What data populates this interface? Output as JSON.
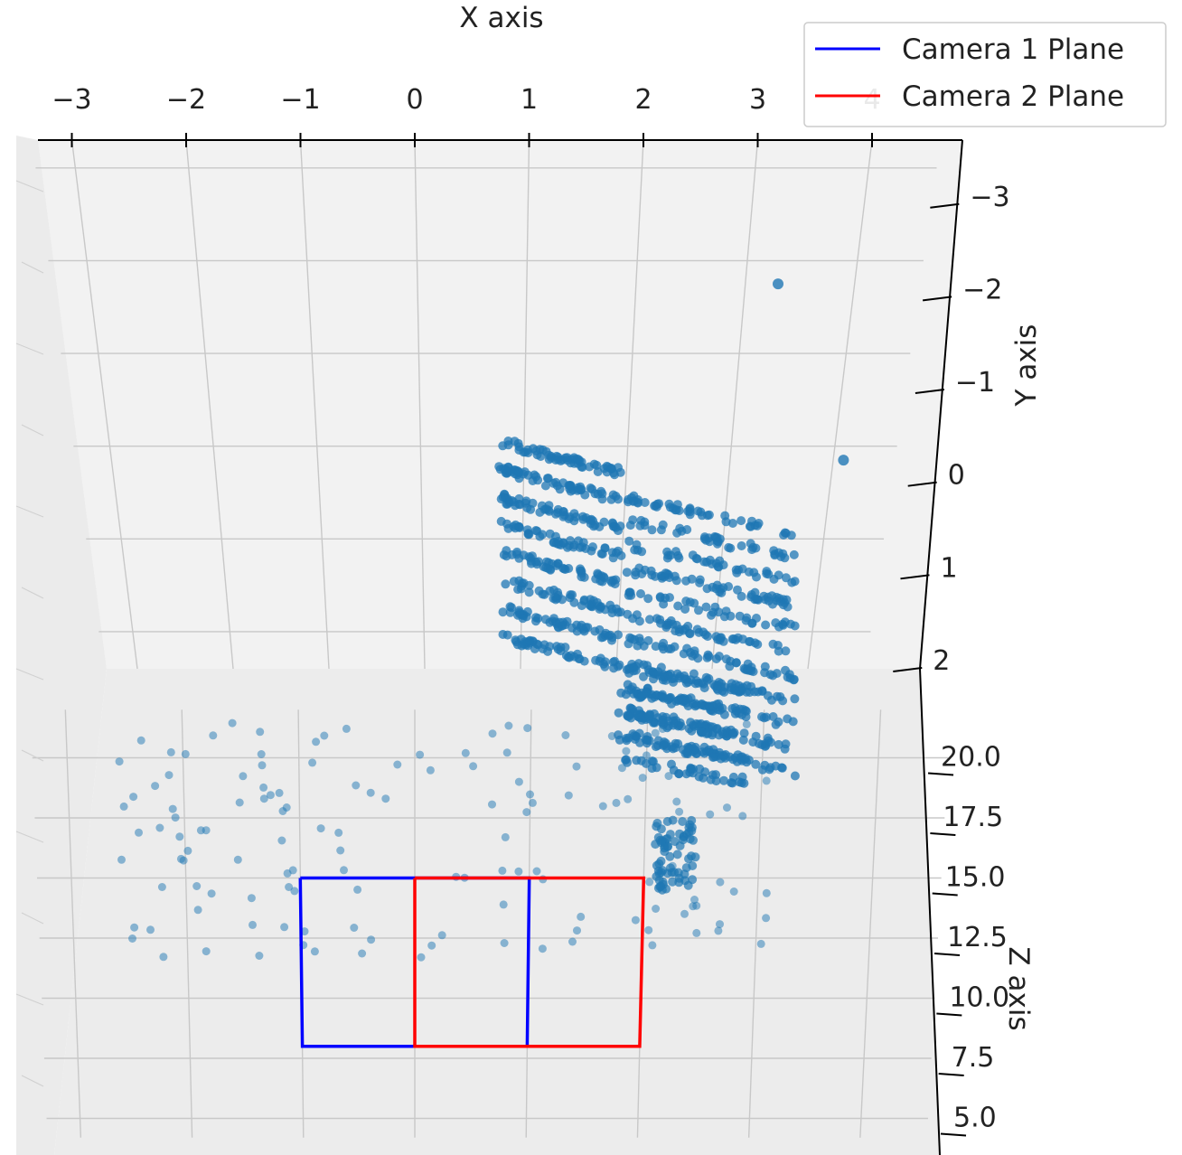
{
  "chart_data": {
    "type": "scatter",
    "projection": "3d",
    "title": "",
    "xlabel": "X axis",
    "ylabel": "Y axis",
    "zlabel": "Z axis",
    "x_ticks": [
      "−3",
      "−2",
      "−1",
      "0",
      "1",
      "2",
      "3",
      "4"
    ],
    "y_ticks": [
      "−3",
      "−2",
      "−1",
      "0",
      "1",
      "2"
    ],
    "z_ticks": [
      "20.0",
      "17.5",
      "15.0",
      "12.5",
      "10.0",
      "7.5",
      "5.0"
    ],
    "xlim": [
      -3.3,
      4.7
    ],
    "ylim": [
      -3.1,
      2.2
    ],
    "zlim": [
      4,
      22
    ],
    "grid": true,
    "legend_position": "top-right",
    "legend": [
      {
        "label": "Camera 1 Plane",
        "color": "#0000ff"
      },
      {
        "label": "Camera 2 Plane",
        "color": "#ff0000"
      }
    ],
    "point_color": "#1f77b4",
    "series": [
      {
        "name": "Camera 1 Plane",
        "color": "#0000ff",
        "x": [
          -1,
          1,
          1,
          -1,
          -1
        ],
        "z": [
          15,
          15,
          8,
          8,
          15
        ]
      },
      {
        "name": "Camera 2 Plane",
        "color": "#ff0000",
        "x": [
          0,
          2,
          2,
          0,
          0
        ],
        "z": [
          15,
          15,
          8,
          8,
          15
        ]
      }
    ],
    "point_clusters": [
      {
        "x": [
          0.8,
          1.8
        ],
        "y": [
          0.0,
          2.5
        ],
        "count": 420,
        "shape": "skewed-grid"
      },
      {
        "x": [
          1.9,
          3.3
        ],
        "y": [
          0.6,
          3.5
        ],
        "count": 520,
        "shape": "skewed-grid"
      },
      {
        "x": [
          1.7,
          2.8
        ],
        "y": [
          3.3,
          4.8
        ],
        "count": 220,
        "shape": "skewed-grid"
      }
    ],
    "outliers": [
      {
        "x": 3.3,
        "y": -1.75
      },
      {
        "x": 4.1,
        "y": 0.15
      }
    ]
  }
}
